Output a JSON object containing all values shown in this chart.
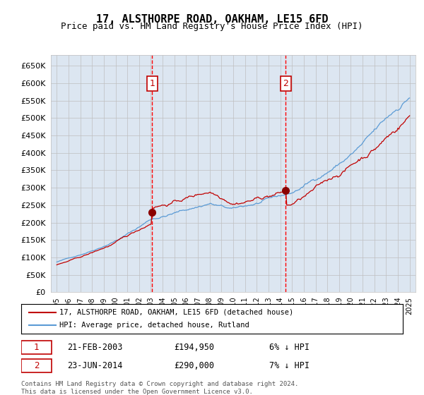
{
  "title": "17, ALSTHORPE ROAD, OAKHAM, LE15 6FD",
  "subtitle": "Price paid vs. HM Land Registry's House Price Index (HPI)",
  "legend_line1": "17, ALSTHORPE ROAD, OAKHAM, LE15 6FD (detached house)",
  "legend_line2": "HPI: Average price, detached house, Rutland",
  "sale1_label": "1",
  "sale1_date": "21-FEB-2003",
  "sale1_price": 194950,
  "sale1_hpi_pct": "6% ↓ HPI",
  "sale2_label": "2",
  "sale2_date": "23-JUN-2014",
  "sale2_price": 290000,
  "sale2_hpi_pct": "7% ↓ HPI",
  "sale1_year": 2003.13,
  "sale2_year": 2014.48,
  "ylim": [
    0,
    680000
  ],
  "yticks": [
    0,
    50000,
    100000,
    150000,
    200000,
    250000,
    300000,
    350000,
    400000,
    450000,
    500000,
    550000,
    600000,
    650000
  ],
  "hpi_color": "#5b9bd5",
  "price_color": "#c00000",
  "marker_color": "#8b0000",
  "bg_color": "#dce6f1",
  "grid_color": "#bfbfbf",
  "vline_color": "#ff0000",
  "box_color": "#c00000",
  "footer": "Contains HM Land Registry data © Crown copyright and database right 2024.\nThis data is licensed under the Open Government Licence v3.0.",
  "start_year": 1995,
  "end_year": 2025,
  "seed": 42
}
